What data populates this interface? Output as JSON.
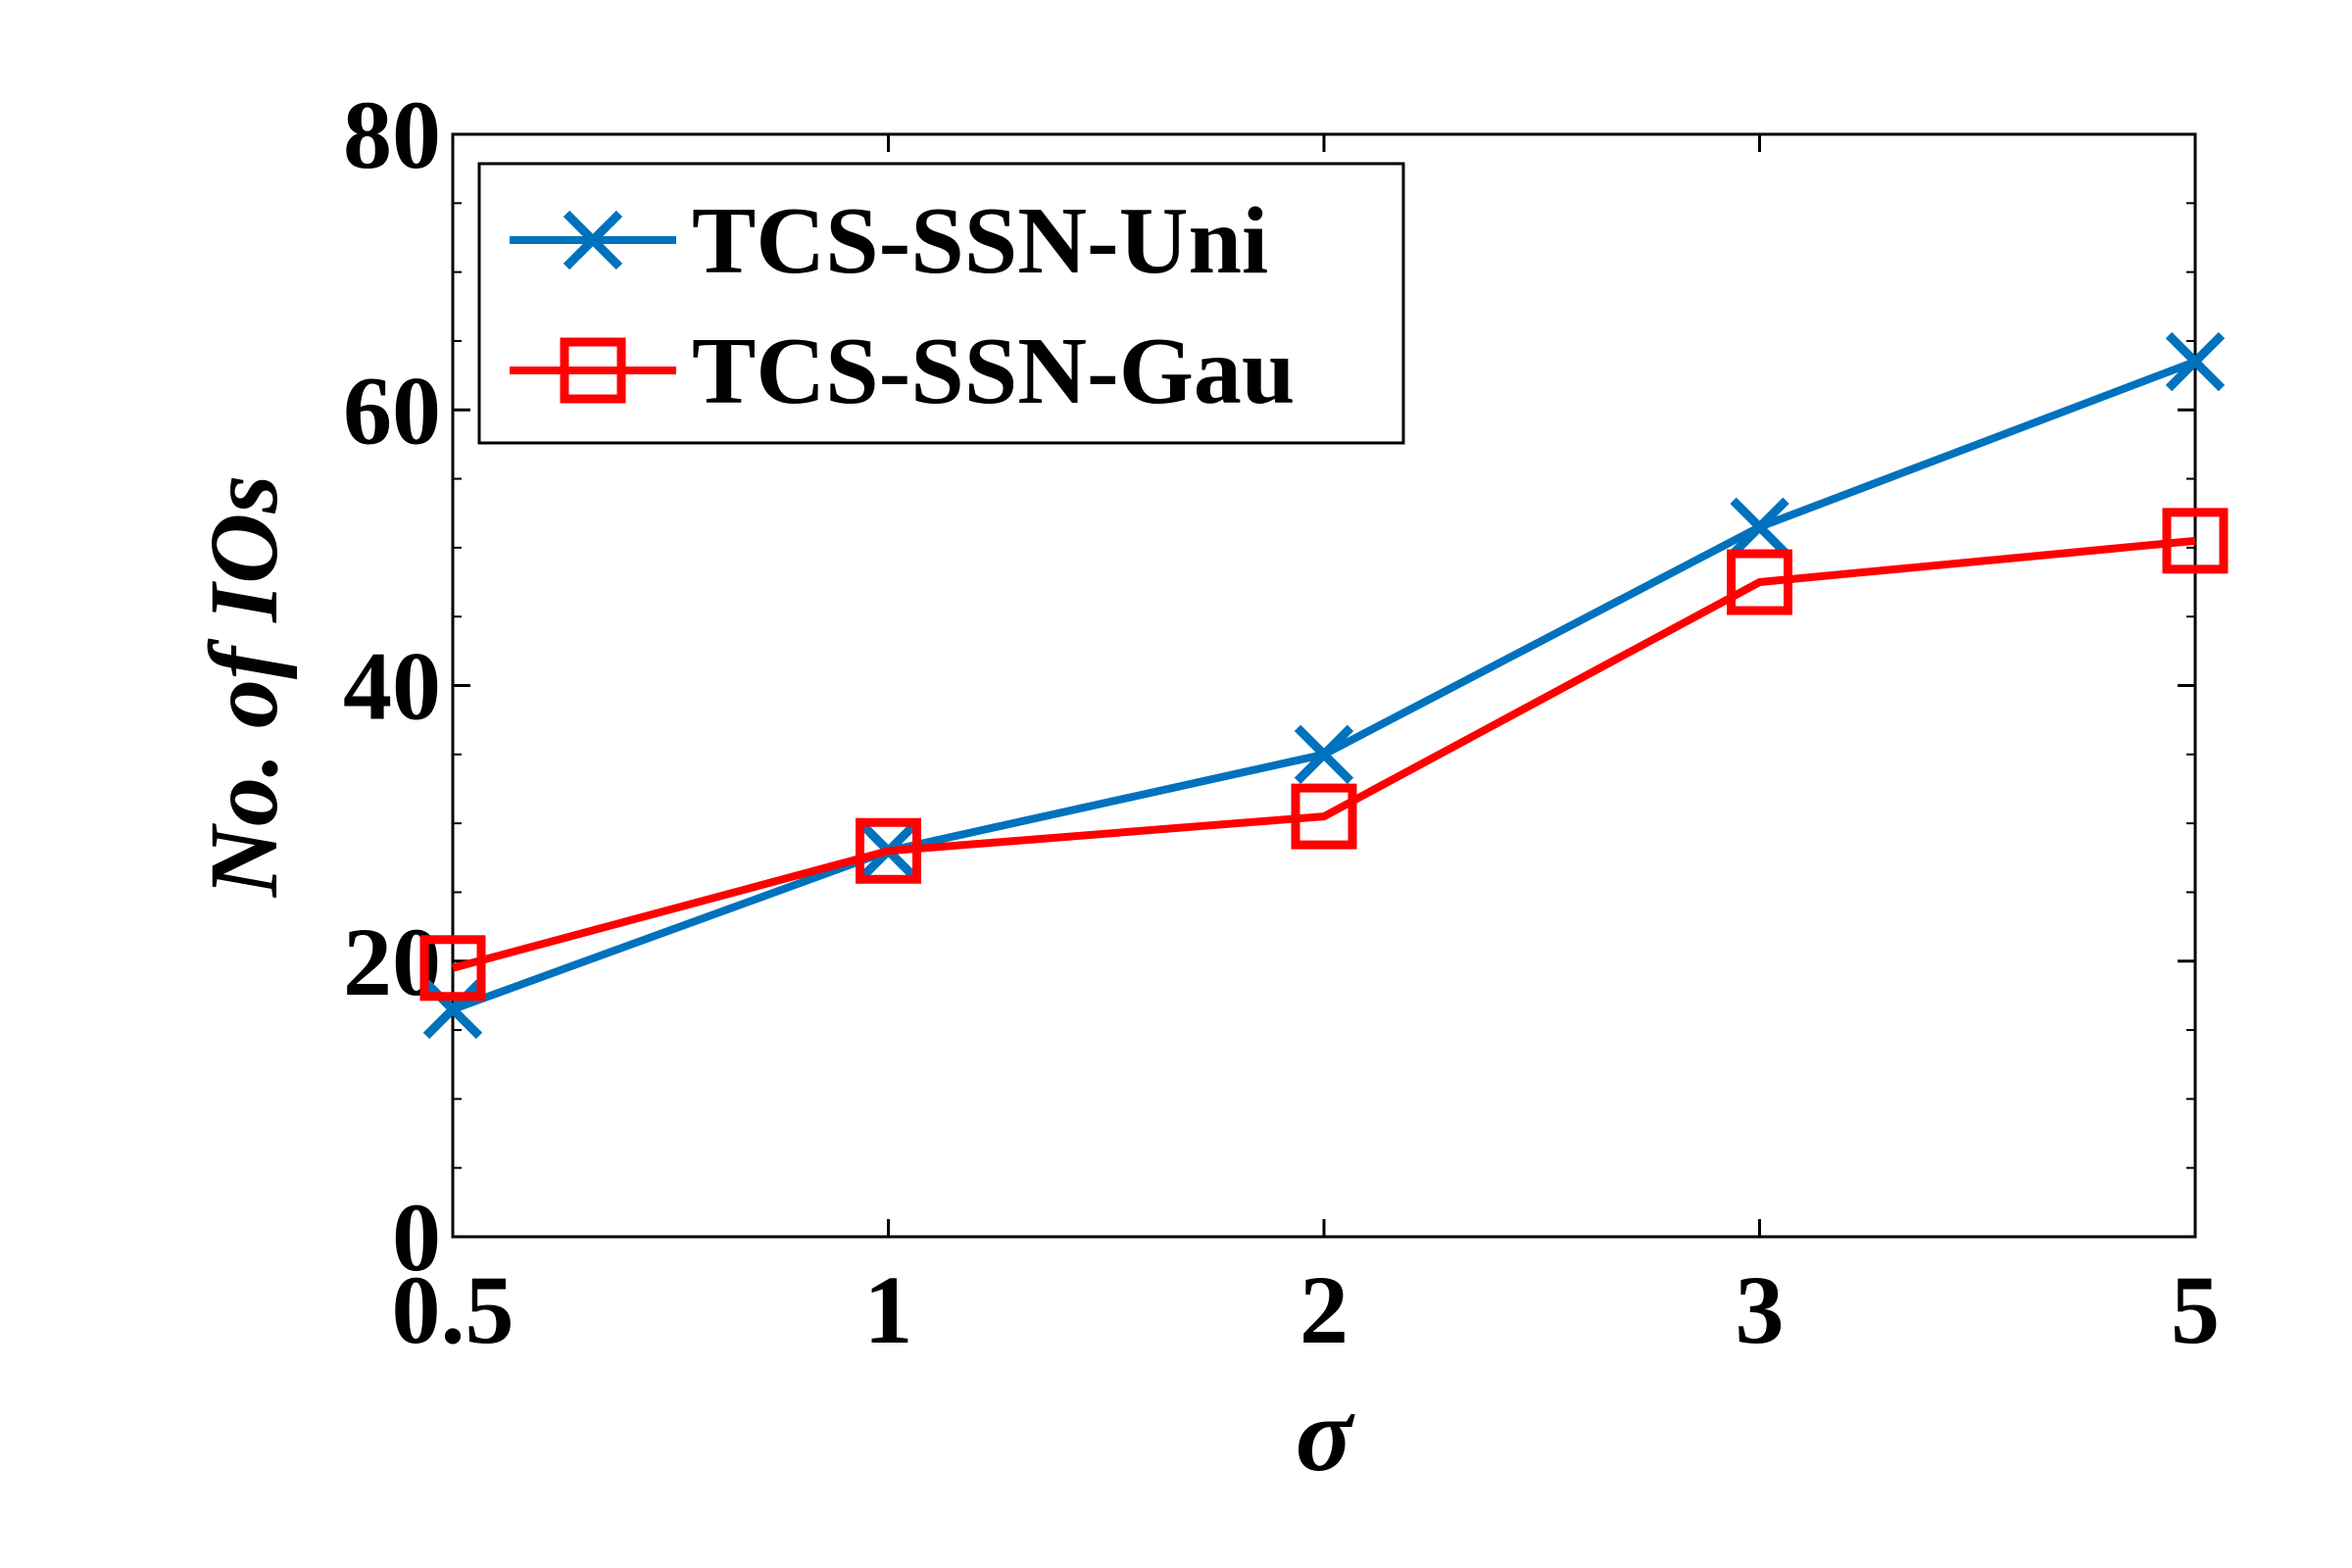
{
  "chart_data": {
    "type": "line",
    "title": "",
    "xlabel": "σ",
    "ylabel": "No. of IOs",
    "categories": [
      "0.5",
      "1",
      "2",
      "3",
      "5"
    ],
    "ylim": [
      0,
      80
    ],
    "yticks": [
      0,
      20,
      40,
      60,
      80
    ],
    "grid": false,
    "legend_position": "top-left",
    "series": [
      {
        "name": "TCS-SSN-Uni",
        "values": [
          16.5,
          28,
          35,
          51.5,
          63.5
        ],
        "color": "#0072BD",
        "marker": "x-icon"
      },
      {
        "name": "TCS-SSN-Gau",
        "values": [
          19.5,
          28,
          30.5,
          47.5,
          50.5
        ],
        "color": "#FF0000",
        "marker": "square-icon"
      }
    ]
  }
}
